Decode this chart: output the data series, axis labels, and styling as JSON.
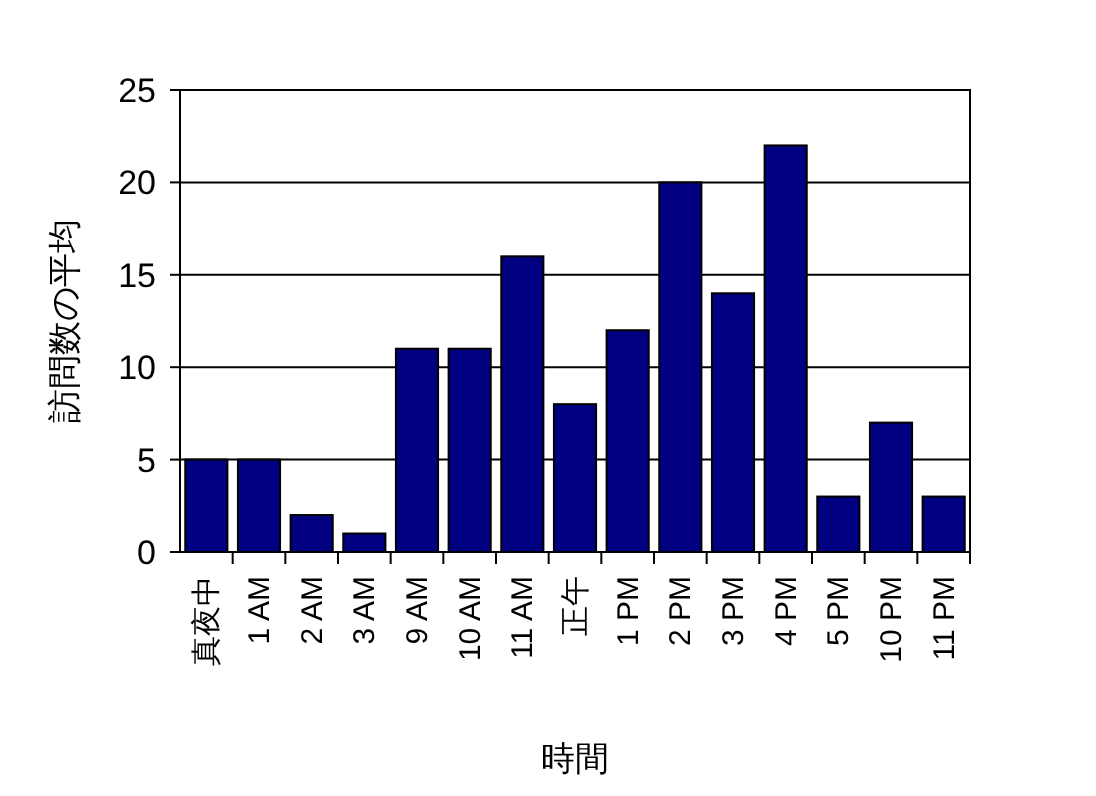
{
  "chart_data": {
    "type": "bar",
    "xlabel": "時間",
    "ylabel": "訪問数の平均",
    "categories": [
      "真夜中",
      "1 AM",
      "2 AM",
      "3 AM",
      "9 AM",
      "10 AM",
      "11 AM",
      "正午",
      "1 PM",
      "2 PM",
      "3 PM",
      "4 PM",
      "5 PM",
      "10 PM",
      "11 PM"
    ],
    "values": [
      5,
      5,
      2,
      1,
      11,
      11,
      16,
      8,
      12,
      20,
      14,
      22,
      3,
      7,
      3
    ],
    "color": "#000080",
    "ylim": [
      0,
      25
    ],
    "yticks": [
      0,
      5,
      10,
      15,
      20,
      25
    ],
    "grid": "y"
  }
}
